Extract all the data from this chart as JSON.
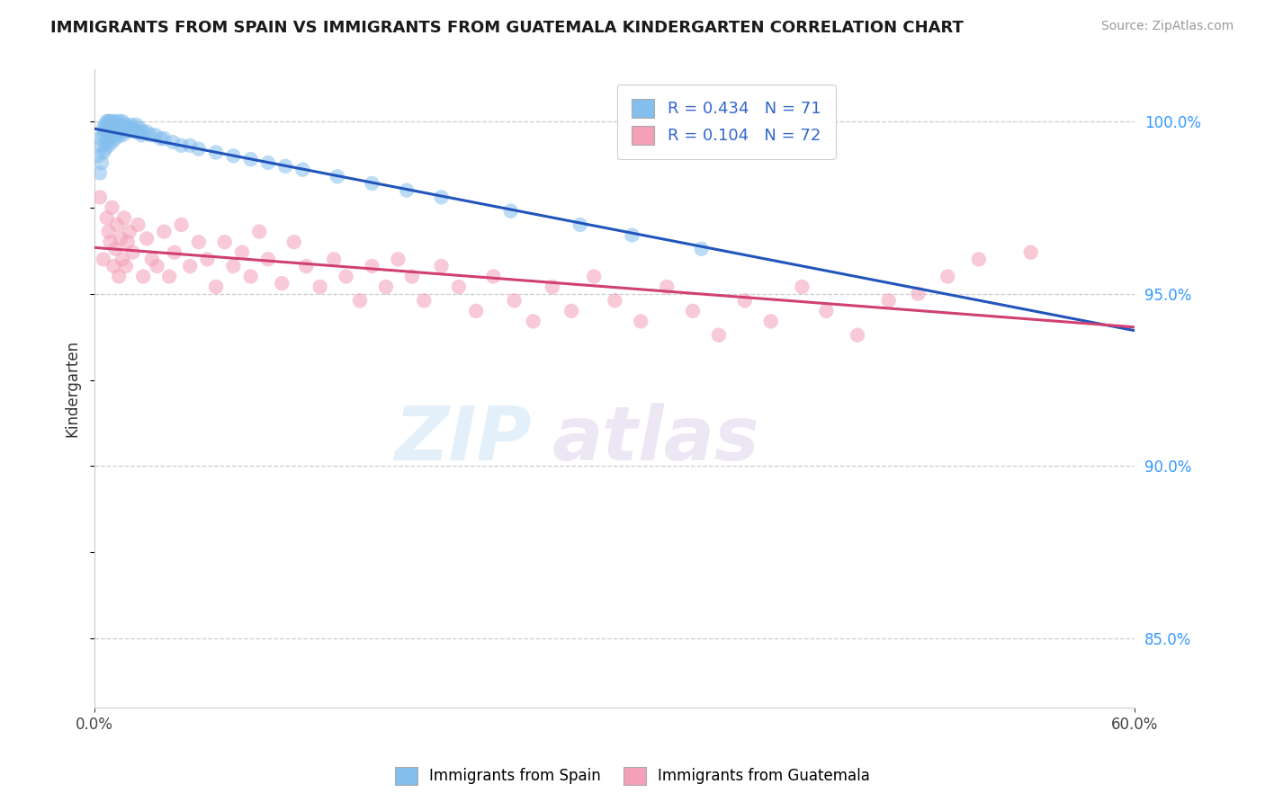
{
  "title": "IMMIGRANTS FROM SPAIN VS IMMIGRANTS FROM GUATEMALA KINDERGARTEN CORRELATION CHART",
  "source": "Source: ZipAtlas.com",
  "ylabel": "Kindergarten",
  "xlim": [
    0.0,
    0.6
  ],
  "ylim": [
    0.83,
    1.015
  ],
  "ytick_vals": [
    0.85,
    0.9,
    0.95,
    1.0
  ],
  "ytick_labels": [
    "85.0%",
    "90.0%",
    "95.0%",
    "100.0%"
  ],
  "blue_color": "#85BFEE",
  "pink_color": "#F4A0B8",
  "blue_line_color": "#2255BB",
  "pink_line_color": "#D04070",
  "spain_x": [
    0.002,
    0.003,
    0.003,
    0.004,
    0.004,
    0.005,
    0.005,
    0.005,
    0.006,
    0.006,
    0.006,
    0.007,
    0.007,
    0.007,
    0.008,
    0.008,
    0.008,
    0.009,
    0.009,
    0.009,
    0.01,
    0.01,
    0.01,
    0.011,
    0.011,
    0.012,
    0.012,
    0.012,
    0.013,
    0.013,
    0.014,
    0.014,
    0.015,
    0.015,
    0.016,
    0.016,
    0.017,
    0.018,
    0.019,
    0.02,
    0.021,
    0.022,
    0.023,
    0.024,
    0.025,
    0.026,
    0.027,
    0.028,
    0.03,
    0.032,
    0.035,
    0.038,
    0.04,
    0.045,
    0.05,
    0.055,
    0.06,
    0.07,
    0.08,
    0.09,
    0.1,
    0.11,
    0.12,
    0.14,
    0.16,
    0.18,
    0.2,
    0.24,
    0.28,
    0.31,
    0.35
  ],
  "spain_y": [
    0.99,
    0.985,
    0.995,
    0.988,
    0.993,
    0.991,
    0.996,
    0.998,
    0.992,
    0.997,
    0.999,
    0.994,
    0.998,
    1.0,
    0.993,
    0.997,
    1.0,
    0.995,
    0.998,
    1.0,
    0.994,
    0.997,
    1.0,
    0.996,
    0.999,
    0.995,
    0.998,
    1.0,
    0.997,
    0.999,
    0.996,
    1.0,
    0.997,
    0.999,
    0.996,
    1.0,
    0.998,
    0.999,
    0.997,
    0.998,
    0.999,
    0.998,
    0.997,
    0.999,
    0.997,
    0.998,
    0.996,
    0.997,
    0.997,
    0.996,
    0.996,
    0.995,
    0.995,
    0.994,
    0.993,
    0.993,
    0.992,
    0.991,
    0.99,
    0.989,
    0.988,
    0.987,
    0.986,
    0.984,
    0.982,
    0.98,
    0.978,
    0.974,
    0.97,
    0.967,
    0.963
  ],
  "guatemala_x": [
    0.003,
    0.005,
    0.007,
    0.008,
    0.009,
    0.01,
    0.011,
    0.012,
    0.013,
    0.014,
    0.015,
    0.016,
    0.017,
    0.018,
    0.019,
    0.02,
    0.022,
    0.025,
    0.028,
    0.03,
    0.033,
    0.036,
    0.04,
    0.043,
    0.046,
    0.05,
    0.055,
    0.06,
    0.065,
    0.07,
    0.075,
    0.08,
    0.085,
    0.09,
    0.095,
    0.1,
    0.108,
    0.115,
    0.122,
    0.13,
    0.138,
    0.145,
    0.153,
    0.16,
    0.168,
    0.175,
    0.183,
    0.19,
    0.2,
    0.21,
    0.22,
    0.23,
    0.242,
    0.253,
    0.264,
    0.275,
    0.288,
    0.3,
    0.315,
    0.33,
    0.345,
    0.36,
    0.375,
    0.39,
    0.408,
    0.422,
    0.44,
    0.458,
    0.475,
    0.492,
    0.51,
    0.54
  ],
  "guatemala_y": [
    0.978,
    0.96,
    0.972,
    0.968,
    0.965,
    0.975,
    0.958,
    0.963,
    0.97,
    0.955,
    0.966,
    0.96,
    0.972,
    0.958,
    0.965,
    0.968,
    0.962,
    0.97,
    0.955,
    0.966,
    0.96,
    0.958,
    0.968,
    0.955,
    0.962,
    0.97,
    0.958,
    0.965,
    0.96,
    0.952,
    0.965,
    0.958,
    0.962,
    0.955,
    0.968,
    0.96,
    0.953,
    0.965,
    0.958,
    0.952,
    0.96,
    0.955,
    0.948,
    0.958,
    0.952,
    0.96,
    0.955,
    0.948,
    0.958,
    0.952,
    0.945,
    0.955,
    0.948,
    0.942,
    0.952,
    0.945,
    0.955,
    0.948,
    0.942,
    0.952,
    0.945,
    0.938,
    0.948,
    0.942,
    0.952,
    0.945,
    0.938,
    0.948,
    0.95,
    0.955,
    0.96,
    0.962
  ]
}
